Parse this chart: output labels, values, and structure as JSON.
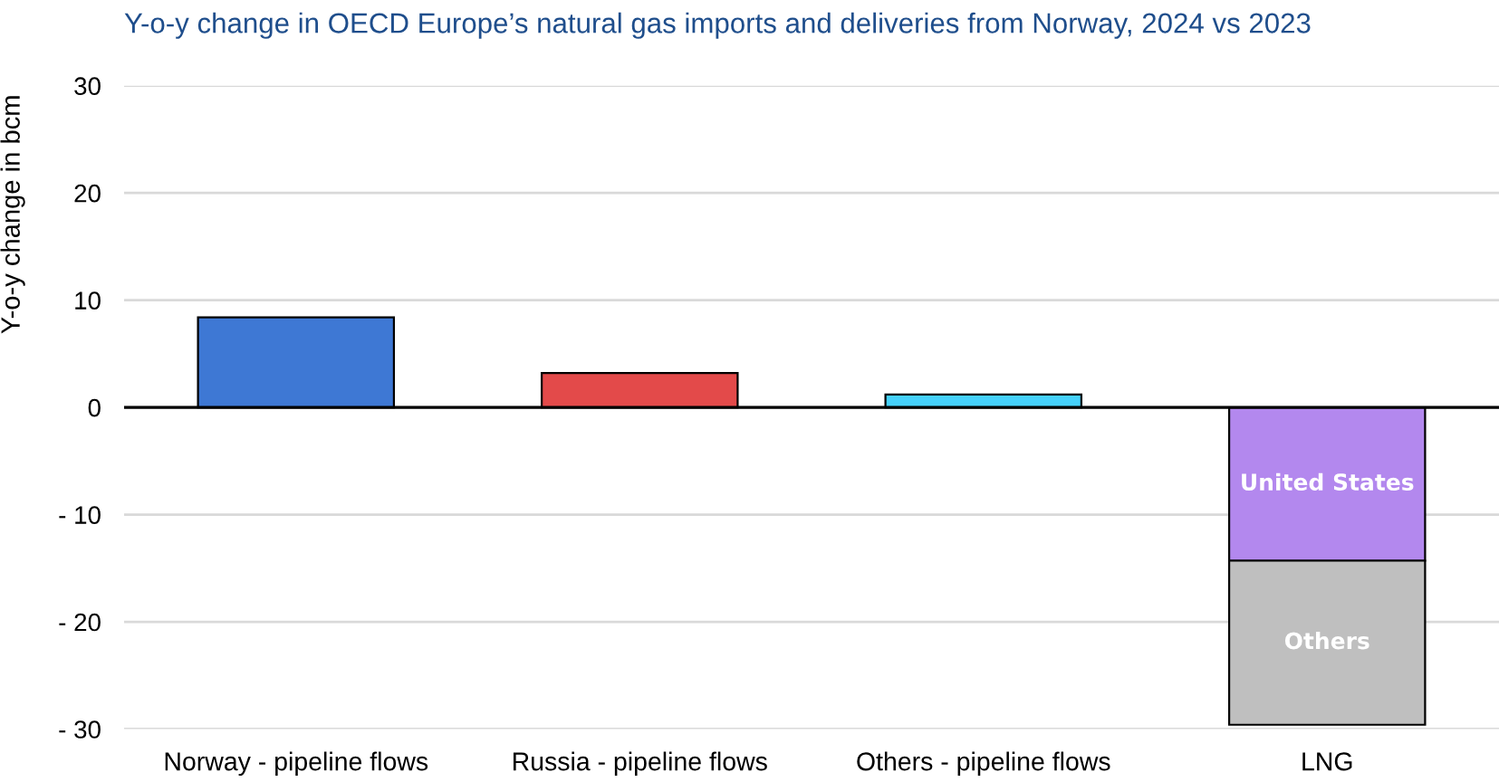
{
  "chart_data": {
    "type": "bar",
    "title": "Y-o-y change in OECD Europe’s natural gas imports and deliveries from Norway, 2024 vs 2023",
    "ylabel": "Y-o-y change in bcm",
    "categories": [
      "Norway - pipeline flows",
      "Russia - pipeline flows",
      "Others - pipeline flows",
      "LNG"
    ],
    "series": [
      {
        "colors": [
          "#3e78d4",
          "#e34a4a",
          "#45d1fb",
          null
        ],
        "values": [
          8.4,
          3.2,
          1.2,
          null
        ]
      },
      {
        "name": "United States",
        "color": "#b388ee",
        "values": [
          null,
          null,
          null,
          -14.3
        ]
      },
      {
        "name": "Others",
        "color": "#bfbfbf",
        "values": [
          null,
          null,
          null,
          -15.3
        ]
      }
    ],
    "stacked": true,
    "ylim": [
      -30,
      30
    ],
    "yticks": [
      {
        "value": -30,
        "label": "- 30"
      },
      {
        "value": -20,
        "label": "- 20"
      },
      {
        "value": -10,
        "label": "- 10"
      },
      0,
      10,
      20,
      30
    ],
    "grid": "y"
  }
}
